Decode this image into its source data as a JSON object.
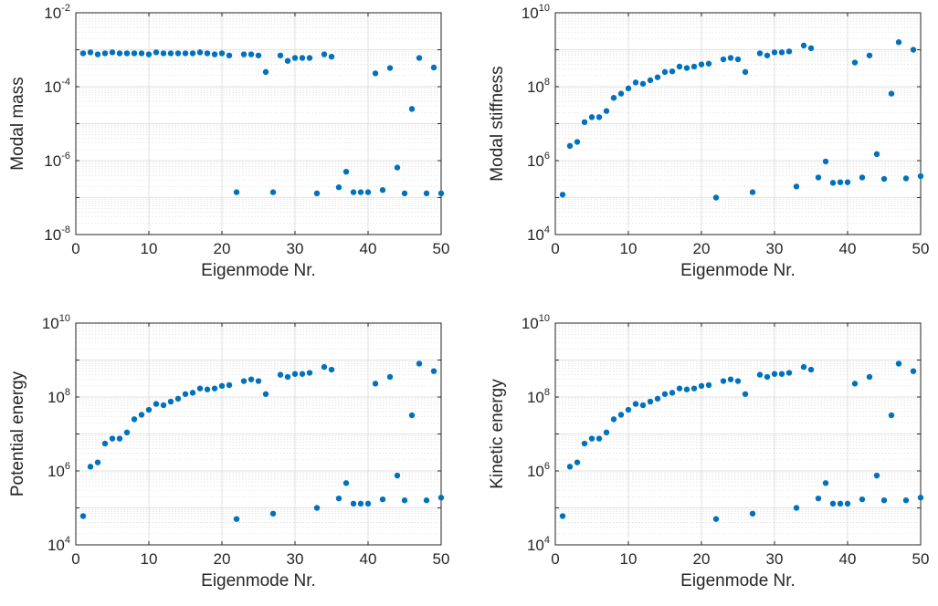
{
  "chart_data": [
    {
      "type": "scatter",
      "title": "",
      "xlabel": "Eigenmode Nr.",
      "ylabel": "Modal mass",
      "yscale": "log",
      "xlim": [
        0,
        50
      ],
      "ylim": [
        1e-08,
        0.01
      ],
      "xticks": [
        0,
        10,
        20,
        30,
        40,
        50
      ],
      "yticks": [
        {
          "base": "10",
          "exp": "-8"
        },
        {
          "base": "10",
          "exp": "-6"
        },
        {
          "base": "10",
          "exp": "-4"
        },
        {
          "base": "10",
          "exp": "-2"
        }
      ],
      "grid": true,
      "color": "#0072BD",
      "series": [
        {
          "x": [
            1,
            2,
            3,
            4,
            5,
            6,
            7,
            8,
            9,
            10,
            11,
            12,
            13,
            14,
            15,
            16,
            17,
            18,
            19,
            20,
            21,
            22,
            23,
            24,
            25,
            26,
            27,
            28,
            29,
            30,
            31,
            32,
            33,
            34,
            35,
            36,
            37,
            38,
            39,
            40,
            41,
            42,
            43,
            44,
            45,
            46,
            47,
            48,
            49,
            50
          ],
          "y": [
            0.0008,
            0.00085,
            0.00075,
            0.0008,
            0.00085,
            0.0008,
            0.0008,
            0.0008,
            0.0008,
            0.00075,
            0.00085,
            0.0008,
            0.0008,
            0.0008,
            0.0008,
            0.0008,
            0.00085,
            0.0008,
            0.00075,
            0.0008,
            0.0007,
            1.4e-07,
            0.00075,
            0.00075,
            0.0007,
            0.00025,
            1.4e-07,
            0.0007,
            0.0005,
            0.0006,
            0.0006,
            0.0006,
            1.3e-07,
            0.00075,
            0.00065,
            1.9e-07,
            5e-07,
            1.4e-07,
            1.4e-07,
            1.4e-07,
            0.00023,
            1.6e-07,
            0.00032,
            6.5e-07,
            1.3e-07,
            2.5e-05,
            0.0006,
            1.3e-07,
            0.00033,
            1.3e-07
          ]
        }
      ]
    },
    {
      "type": "scatter",
      "title": "",
      "xlabel": "Eigenmode Nr.",
      "ylabel": "Modal stiffness",
      "yscale": "log",
      "xlim": [
        0,
        50
      ],
      "ylim": [
        10000.0,
        10000000000.0
      ],
      "xticks": [
        0,
        10,
        20,
        30,
        40,
        50
      ],
      "yticks": [
        {
          "base": "10",
          "exp": "4"
        },
        {
          "base": "10",
          "exp": "6"
        },
        {
          "base": "10",
          "exp": "8"
        },
        {
          "base": "10",
          "exp": "10"
        }
      ],
      "grid": true,
      "color": "#0072BD",
      "series": [
        {
          "x": [
            1,
            2,
            3,
            4,
            5,
            6,
            7,
            8,
            9,
            10,
            11,
            12,
            13,
            14,
            15,
            16,
            17,
            18,
            19,
            20,
            21,
            22,
            23,
            24,
            25,
            26,
            27,
            28,
            29,
            30,
            31,
            32,
            33,
            34,
            35,
            36,
            37,
            38,
            39,
            40,
            41,
            42,
            43,
            44,
            45,
            46,
            47,
            48,
            49,
            50
          ],
          "y": [
            120000.0,
            2500000.0,
            3200000.0,
            11000000.0,
            15000000.0,
            15000000.0,
            22000000.0,
            50000000.0,
            65000000.0,
            90000000.0,
            130000000.0,
            120000000.0,
            150000000.0,
            180000000.0,
            250000000.0,
            260000000.0,
            350000000.0,
            320000000.0,
            350000000.0,
            400000000.0,
            420000000.0,
            100000.0,
            550000000.0,
            600000000.0,
            550000000.0,
            250000000.0,
            140000.0,
            800000000.0,
            700000000.0,
            850000000.0,
            850000000.0,
            900000000.0,
            200000.0,
            1300000000.0,
            1100000000.0,
            350000.0,
            950000.0,
            250000.0,
            260000.0,
            260000.0,
            450000000.0,
            350000.0,
            700000000.0,
            1500000.0,
            320000.0,
            65000000.0,
            1600000000.0,
            330000.0,
            1000000000.0,
            380000.0
          ]
        }
      ]
    },
    {
      "type": "scatter",
      "title": "",
      "xlabel": "Eigenmode Nr.",
      "ylabel": "Potential energy",
      "yscale": "log",
      "xlim": [
        0,
        50
      ],
      "ylim": [
        10000.0,
        10000000000.0
      ],
      "xticks": [
        0,
        10,
        20,
        30,
        40,
        50
      ],
      "yticks": [
        {
          "base": "10",
          "exp": "4"
        },
        {
          "base": "10",
          "exp": "6"
        },
        {
          "base": "10",
          "exp": "8"
        },
        {
          "base": "10",
          "exp": "10"
        }
      ],
      "grid": true,
      "color": "#0072BD",
      "series": [
        {
          "x": [
            1,
            2,
            3,
            4,
            5,
            6,
            7,
            8,
            9,
            10,
            11,
            12,
            13,
            14,
            15,
            16,
            17,
            18,
            19,
            20,
            21,
            22,
            23,
            24,
            25,
            26,
            27,
            28,
            29,
            30,
            31,
            32,
            33,
            34,
            35,
            36,
            37,
            38,
            39,
            40,
            41,
            42,
            43,
            44,
            45,
            46,
            47,
            48,
            49,
            50
          ],
          "y": [
            60000.0,
            1300000.0,
            1700000.0,
            5500000.0,
            7500000.0,
            7500000.0,
            11000000.0,
            25000000.0,
            33000000.0,
            45000000.0,
            65000000.0,
            60000000.0,
            75000000.0,
            90000000.0,
            120000000.0,
            130000000.0,
            170000000.0,
            160000000.0,
            170000000.0,
            200000000.0,
            210000000.0,
            50000.0,
            270000000.0,
            300000000.0,
            270000000.0,
            120000000.0,
            70000.0,
            400000000.0,
            350000000.0,
            420000000.0,
            420000000.0,
            450000000.0,
            100000.0,
            650000000.0,
            550000000.0,
            180000.0,
            470000.0,
            130000.0,
            130000.0,
            130000.0,
            230000000.0,
            170000.0,
            350000000.0,
            750000.0,
            160000.0,
            32000000.0,
            800000000.0,
            160000.0,
            500000000.0,
            190000.0
          ]
        }
      ]
    },
    {
      "type": "scatter",
      "title": "",
      "xlabel": "Eigenmode Nr.",
      "ylabel": "Kinetic energy",
      "yscale": "log",
      "xlim": [
        0,
        50
      ],
      "ylim": [
        10000.0,
        10000000000.0
      ],
      "xticks": [
        0,
        10,
        20,
        30,
        40,
        50
      ],
      "yticks": [
        {
          "base": "10",
          "exp": "4"
        },
        {
          "base": "10",
          "exp": "6"
        },
        {
          "base": "10",
          "exp": "8"
        },
        {
          "base": "10",
          "exp": "10"
        }
      ],
      "grid": true,
      "color": "#0072BD",
      "series": [
        {
          "x": [
            1,
            2,
            3,
            4,
            5,
            6,
            7,
            8,
            9,
            10,
            11,
            12,
            13,
            14,
            15,
            16,
            17,
            18,
            19,
            20,
            21,
            22,
            23,
            24,
            25,
            26,
            27,
            28,
            29,
            30,
            31,
            32,
            33,
            34,
            35,
            36,
            37,
            38,
            39,
            40,
            41,
            42,
            43,
            44,
            45,
            46,
            47,
            48,
            49,
            50
          ],
          "y": [
            60000.0,
            1300000.0,
            1700000.0,
            5500000.0,
            7500000.0,
            7500000.0,
            11000000.0,
            25000000.0,
            33000000.0,
            45000000.0,
            65000000.0,
            60000000.0,
            75000000.0,
            90000000.0,
            120000000.0,
            130000000.0,
            170000000.0,
            160000000.0,
            170000000.0,
            200000000.0,
            210000000.0,
            50000.0,
            270000000.0,
            300000000.0,
            270000000.0,
            120000000.0,
            70000.0,
            400000000.0,
            350000000.0,
            420000000.0,
            420000000.0,
            450000000.0,
            100000.0,
            650000000.0,
            550000000.0,
            180000.0,
            470000.0,
            130000.0,
            130000.0,
            130000.0,
            230000000.0,
            170000.0,
            350000000.0,
            750000.0,
            160000.0,
            32000000.0,
            800000000.0,
            160000.0,
            500000000.0,
            190000.0
          ]
        }
      ]
    }
  ]
}
